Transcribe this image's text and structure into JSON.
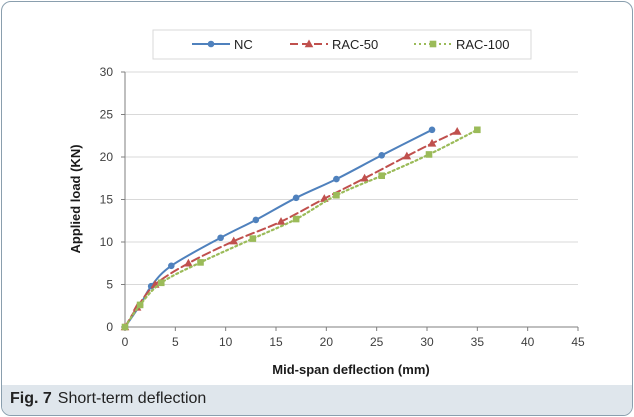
{
  "caption": {
    "label": "Fig. 7",
    "text": "Short-term deflection"
  },
  "chart_data": {
    "type": "line",
    "xlabel": "Mid-span deflection (mm)",
    "ylabel": "Applied load (KN)",
    "xlim": [
      0,
      45
    ],
    "ylim": [
      0,
      30
    ],
    "xticks": [
      "0",
      "5",
      "10",
      "15",
      "20",
      "25",
      "30",
      "35",
      "40",
      "45"
    ],
    "yticks": [
      "0",
      "5",
      "10",
      "15",
      "20",
      "25",
      "30"
    ],
    "grid": "horizontal",
    "legend_position": "top",
    "series": [
      {
        "name": "NC",
        "color": "#4f81bd",
        "marker": "circle",
        "dash": "solid",
        "points": [
          [
            0,
            0
          ],
          [
            1.5,
            2.6
          ],
          [
            2.6,
            4.8
          ],
          [
            4.6,
            7.2
          ],
          [
            9.5,
            10.5
          ],
          [
            13,
            12.6
          ],
          [
            17,
            15.2
          ],
          [
            21,
            17.4
          ],
          [
            25.5,
            20.2
          ],
          [
            30.5,
            23.2
          ]
        ]
      },
      {
        "name": "RAC-50",
        "color": "#c0504d",
        "marker": "triangle",
        "dash": "dashed",
        "points": [
          [
            0,
            0
          ],
          [
            1.2,
            2.3
          ],
          [
            3,
            5.0
          ],
          [
            6.3,
            7.5
          ],
          [
            10.8,
            10.1
          ],
          [
            15.5,
            12.4
          ],
          [
            19.8,
            15.1
          ],
          [
            23.8,
            17.5
          ],
          [
            28,
            20.1
          ],
          [
            30.5,
            21.6
          ],
          [
            33,
            23.0
          ]
        ]
      },
      {
        "name": "RAC-100",
        "color": "#9bbb59",
        "marker": "square",
        "dash": "dotted",
        "points": [
          [
            0,
            0
          ],
          [
            1.5,
            2.6
          ],
          [
            3.6,
            5.2
          ],
          [
            7.5,
            7.6
          ],
          [
            12.7,
            10.4
          ],
          [
            17,
            12.7
          ],
          [
            21,
            15.5
          ],
          [
            25.5,
            17.8
          ],
          [
            30.2,
            20.3
          ],
          [
            35,
            23.2
          ]
        ]
      }
    ]
  }
}
